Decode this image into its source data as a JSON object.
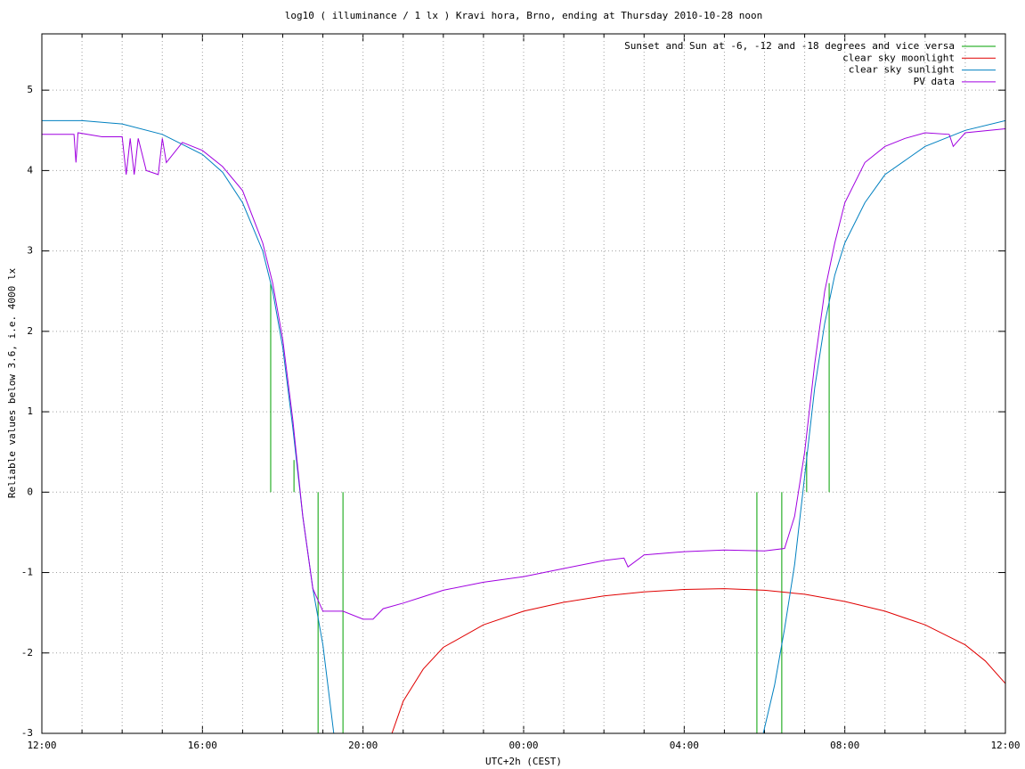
{
  "chart_data": {
    "type": "line",
    "title": "log10 ( illuminance / 1 lx ) Kravi hora, Brno, ending at Thursday 2010-10-28 noon",
    "x_label": "UTC+2h (CEST)",
    "y_label": "Reliable values below 3.6, i.e. 4000 lx",
    "xlim": [
      0,
      24
    ],
    "xticks": [
      {
        "value": 0,
        "label": "12:00"
      },
      {
        "value": 4,
        "label": "16:00"
      },
      {
        "value": 8,
        "label": "20:00"
      },
      {
        "value": 12,
        "label": "00:00"
      },
      {
        "value": 16,
        "label": "04:00"
      },
      {
        "value": 20,
        "label": "08:00"
      },
      {
        "value": 24,
        "label": "12:00"
      }
    ],
    "x_grid_subdivisions": 4,
    "ylim": [
      -3,
      5.7
    ],
    "yticks": [
      -3,
      -2,
      -1,
      0,
      1,
      2,
      3,
      4,
      5
    ],
    "grid": true,
    "legend": "top-right",
    "series": [
      {
        "name": "Sunset and Sun at -6, -12 and -18 degrees and vice versa",
        "color": "#00a000",
        "style": "impulses",
        "x": [
          5.7,
          6.28,
          6.88,
          7.5,
          17.81,
          18.43,
          19.05,
          19.61
        ],
        "values": [
          2.6,
          0.4,
          -3,
          -3,
          -3,
          -3,
          0.5,
          2.6
        ]
      },
      {
        "name": "clear sky moonlight",
        "color": "#e00000",
        "style": "lines",
        "x": [
          8.72,
          9.0,
          9.5,
          10,
          11,
          12,
          13,
          14,
          15,
          16,
          17,
          18,
          19,
          20,
          21,
          22,
          23,
          23.5,
          24
        ],
        "values": [
          -3,
          -2.6,
          -2.2,
          -1.93,
          -1.65,
          -1.48,
          -1.37,
          -1.29,
          -1.24,
          -1.21,
          -1.2,
          -1.22,
          -1.27,
          -1.36,
          -1.48,
          -1.65,
          -1.9,
          -2.1,
          -2.38
        ]
      },
      {
        "name": "clear sky sunlight",
        "color": "#0080c0",
        "style": "lines",
        "x": [
          0,
          1,
          2,
          3,
          4,
          4.5,
          5,
          5.5,
          5.75,
          6,
          6.25,
          6.5,
          6.75,
          7,
          7.27,
          12,
          17.97,
          18.25,
          18.5,
          18.75,
          19,
          19.25,
          19.5,
          19.75,
          20,
          20.5,
          21,
          22,
          23,
          24
        ],
        "values": [
          4.62,
          4.62,
          4.58,
          4.45,
          4.2,
          3.98,
          3.6,
          3.0,
          2.5,
          1.8,
          0.8,
          -0.3,
          -1.2,
          -1.9,
          -3,
          null,
          -3,
          -2.4,
          -1.7,
          -0.9,
          0.2,
          1.3,
          2.1,
          2.7,
          3.1,
          3.6,
          3.95,
          4.3,
          4.5,
          4.62
        ]
      },
      {
        "name": "PV data",
        "color": "#a000e0",
        "style": "lines",
        "x": [
          0,
          0.8,
          0.85,
          0.9,
          1.5,
          2,
          2.1,
          2.2,
          2.3,
          2.4,
          2.6,
          2.9,
          3.0,
          3.1,
          3.5,
          4,
          4.5,
          5,
          5.5,
          5.75,
          6,
          6.25,
          6.5,
          6.75,
          7,
          7.5,
          8,
          8.25,
          8.5,
          9,
          9.5,
          10,
          11,
          12,
          13,
          14,
          14.5,
          14.6,
          15,
          16,
          17,
          18,
          18.5,
          18.75,
          19,
          19.25,
          19.5,
          19.75,
          20,
          20.5,
          21,
          21.5,
          22,
          22.6,
          22.7,
          23,
          24
        ],
        "values": [
          4.45,
          4.45,
          4.1,
          4.47,
          4.42,
          4.42,
          3.95,
          4.4,
          3.95,
          4.4,
          4.0,
          3.95,
          4.4,
          4.1,
          4.35,
          4.25,
          4.05,
          3.75,
          3.1,
          2.6,
          1.9,
          0.9,
          -0.3,
          -1.2,
          -1.48,
          -1.48,
          -1.58,
          -1.58,
          -1.45,
          -1.38,
          -1.3,
          -1.22,
          -1.12,
          -1.05,
          -0.95,
          -0.85,
          -0.82,
          -0.93,
          -0.78,
          -0.74,
          -0.72,
          -0.73,
          -0.7,
          -0.3,
          0.5,
          1.6,
          2.5,
          3.1,
          3.6,
          4.1,
          4.3,
          4.4,
          4.47,
          4.45,
          4.3,
          4.47,
          4.52
        ]
      }
    ]
  }
}
